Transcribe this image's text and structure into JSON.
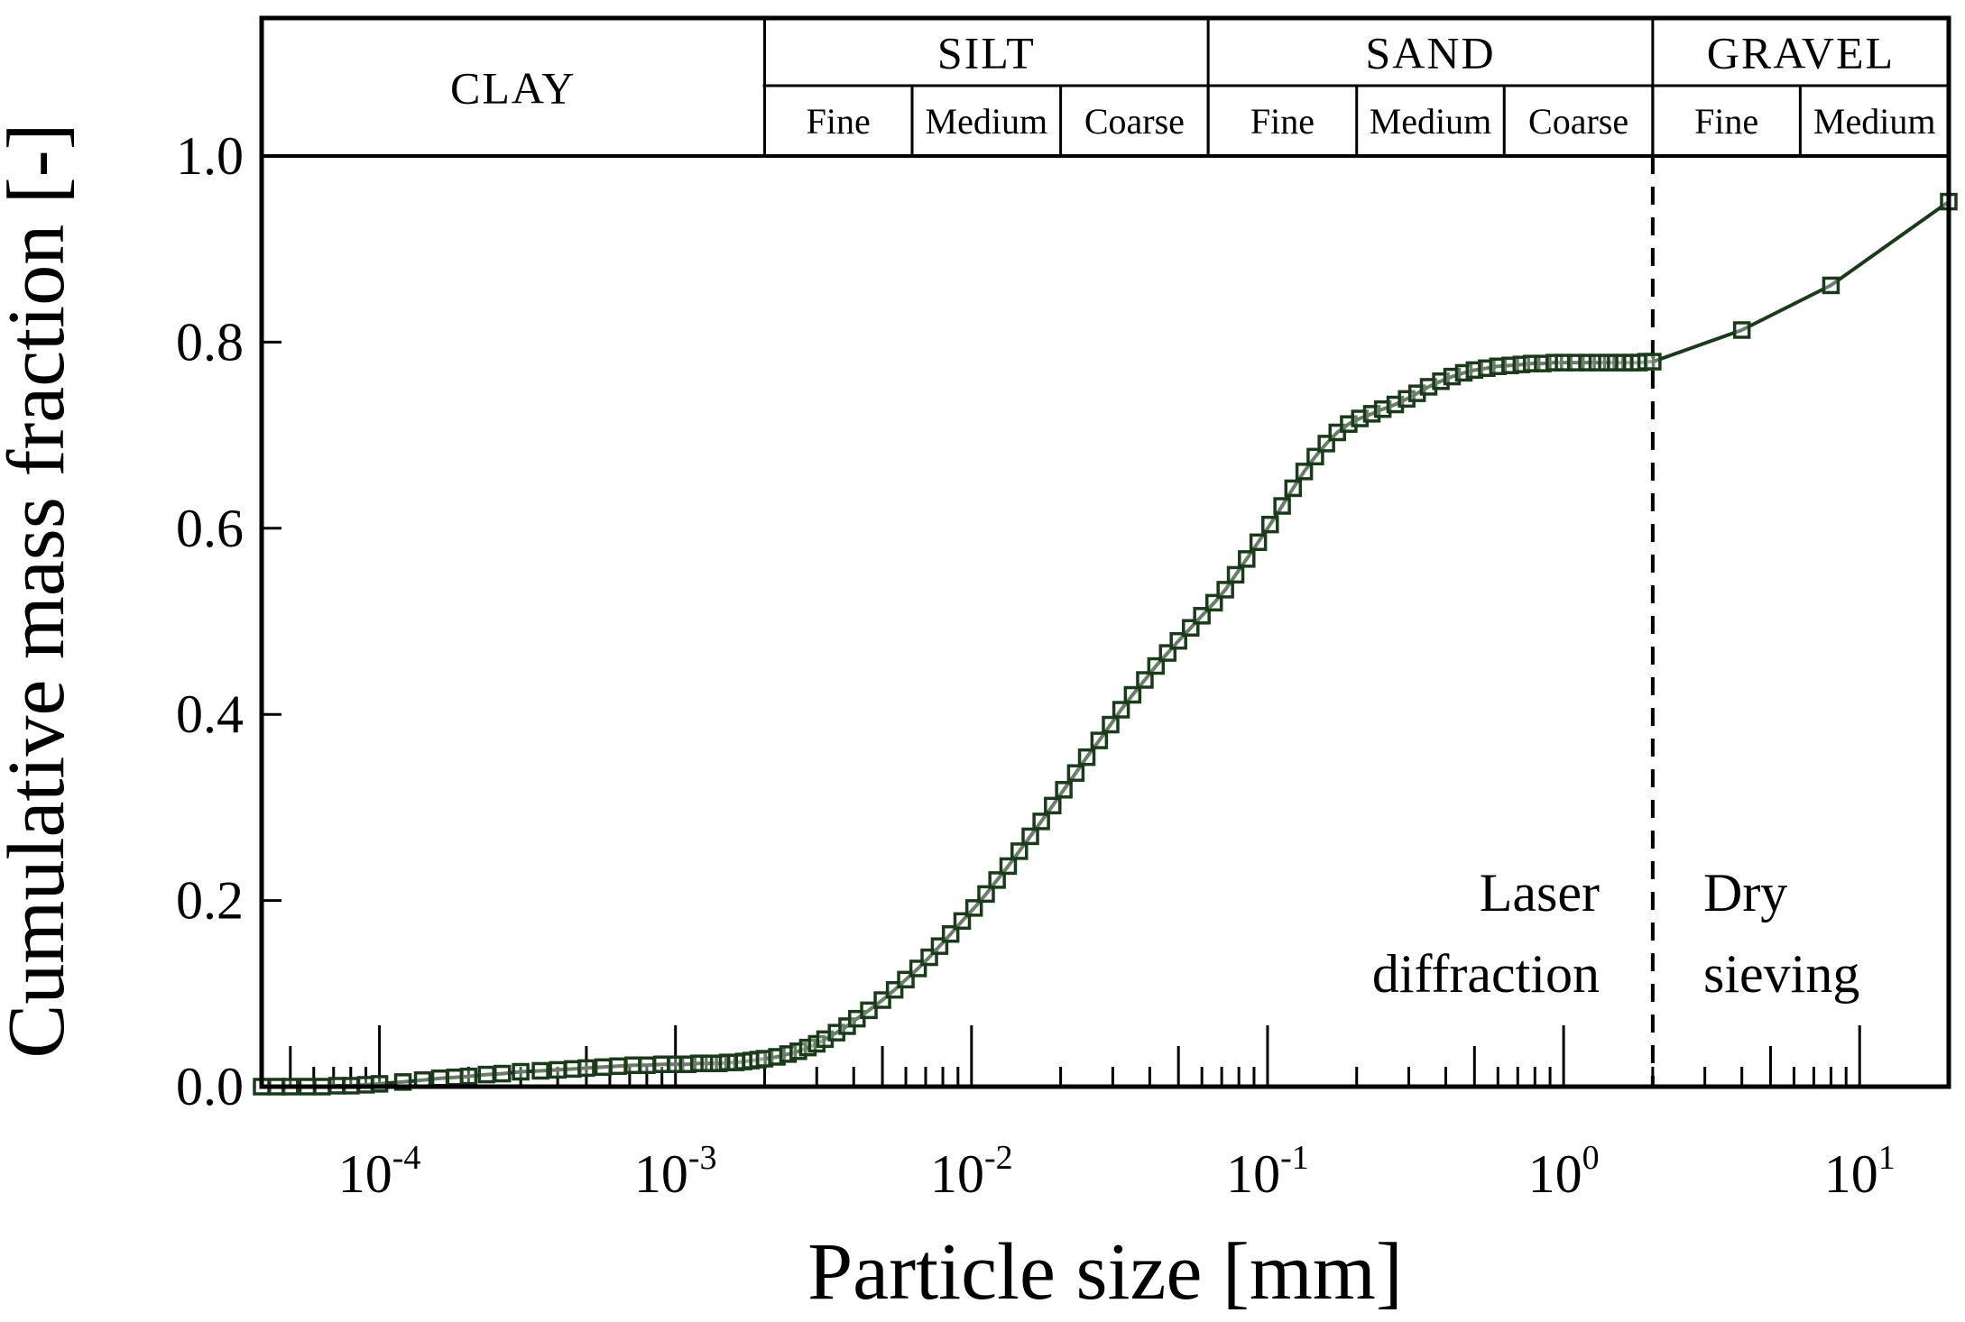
{
  "chart_data": {
    "type": "line",
    "title": "",
    "xlabel": "Particle size [mm]",
    "ylabel": "Cumulative mass fraction [-]",
    "xscale": "log",
    "xlim": [
      4e-05,
      20
    ],
    "ylim": [
      0,
      1.0
    ],
    "y_ticks": [
      "0.0",
      "0.2",
      "0.4",
      "0.6",
      "0.8",
      "1.0"
    ],
    "x_ticks": [
      {
        "base": "10",
        "exp": "-4",
        "value": 0.0001
      },
      {
        "base": "10",
        "exp": "-3",
        "value": 0.001
      },
      {
        "base": "10",
        "exp": "-2",
        "value": 0.01
      },
      {
        "base": "10",
        "exp": "-1",
        "value": 0.1
      },
      {
        "base": "10",
        "exp": "0",
        "value": 1
      },
      {
        "base": "10",
        "exp": "1",
        "value": 10
      }
    ],
    "series": [
      {
        "name": "Laser diffraction + Dry sieving",
        "color": "#1b3a1b",
        "marker": "open-square",
        "x": [
          4e-05,
          4.5e-05,
          5e-05,
          5.7e-05,
          6.4e-05,
          7.2e-05,
          8e-05,
          9e-05,
          0.0001,
          0.00012,
          0.00014,
          0.00016,
          0.00018,
          0.0002,
          0.00023,
          0.00026,
          0.0003,
          0.00035,
          0.0004,
          0.00045,
          0.0005,
          0.00057,
          0.00064,
          0.00072,
          0.0008,
          0.0009,
          0.001,
          0.0011,
          0.0012,
          0.0013,
          0.0014,
          0.0015,
          0.0016,
          0.0017,
          0.0018,
          0.0019,
          0.002,
          0.0022,
          0.0024,
          0.0026,
          0.0028,
          0.003,
          0.0032,
          0.0035,
          0.0038,
          0.0041,
          0.0045,
          0.005,
          0.0055,
          0.006,
          0.0066,
          0.0072,
          0.0078,
          0.0085,
          0.0093,
          0.0102,
          0.0112,
          0.0122,
          0.0133,
          0.0145,
          0.0158,
          0.0172,
          0.0188,
          0.0205,
          0.0225,
          0.0245,
          0.027,
          0.0295,
          0.032,
          0.035,
          0.0385,
          0.042,
          0.046,
          0.05,
          0.055,
          0.06,
          0.066,
          0.072,
          0.078,
          0.085,
          0.093,
          0.102,
          0.112,
          0.122,
          0.133,
          0.145,
          0.158,
          0.172,
          0.188,
          0.205,
          0.225,
          0.245,
          0.27,
          0.295,
          0.32,
          0.35,
          0.385,
          0.42,
          0.46,
          0.5,
          0.55,
          0.6,
          0.66,
          0.72,
          0.78,
          0.85,
          0.93,
          1.0,
          1.1,
          1.2,
          1.3,
          1.4,
          1.5,
          1.6,
          1.7,
          1.8,
          1.9,
          2.0,
          4.0,
          8.0,
          20.0
        ],
        "y": [
          0.0,
          0.0,
          0.0,
          0.0,
          0.0,
          0.001,
          0.001,
          0.002,
          0.003,
          0.005,
          0.007,
          0.009,
          0.01,
          0.011,
          0.013,
          0.014,
          0.016,
          0.017,
          0.018,
          0.019,
          0.02,
          0.021,
          0.022,
          0.023,
          0.023,
          0.024,
          0.024,
          0.024,
          0.025,
          0.025,
          0.025,
          0.026,
          0.026,
          0.027,
          0.028,
          0.029,
          0.03,
          0.032,
          0.035,
          0.038,
          0.042,
          0.046,
          0.051,
          0.058,
          0.065,
          0.073,
          0.082,
          0.093,
          0.104,
          0.115,
          0.127,
          0.139,
          0.151,
          0.164,
          0.178,
          0.192,
          0.207,
          0.222,
          0.237,
          0.253,
          0.269,
          0.285,
          0.302,
          0.319,
          0.337,
          0.354,
          0.372,
          0.389,
          0.405,
          0.421,
          0.437,
          0.452,
          0.466,
          0.479,
          0.493,
          0.506,
          0.52,
          0.534,
          0.55,
          0.567,
          0.585,
          0.604,
          0.624,
          0.643,
          0.661,
          0.677,
          0.691,
          0.703,
          0.712,
          0.718,
          0.723,
          0.728,
          0.733,
          0.739,
          0.745,
          0.752,
          0.758,
          0.763,
          0.767,
          0.77,
          0.772,
          0.774,
          0.775,
          0.776,
          0.777,
          0.777,
          0.778,
          0.778,
          0.778,
          0.778,
          0.778,
          0.778,
          0.778,
          0.778,
          0.778,
          0.778,
          0.779,
          0.779,
          0.813,
          0.861,
          0.951
        ]
      }
    ],
    "divider": {
      "x": 2.0,
      "style": "dashed"
    },
    "annotations": {
      "left_line1": "Laser",
      "left_line2": "diffraction",
      "right_line1": "Dry",
      "right_line2": "sieving"
    },
    "classification": {
      "main": [
        {
          "label": "CLAY",
          "from": 4e-05,
          "to": 0.002
        },
        {
          "label": "SILT",
          "from": 0.002,
          "to": 0.063
        },
        {
          "label": "SAND",
          "from": 0.063,
          "to": 2.0
        },
        {
          "label": "GRAVEL",
          "from": 2.0,
          "to": 20
        }
      ],
      "sub": [
        {
          "label": "Fine",
          "from": 0.002,
          "to": 0.0063
        },
        {
          "label": "Medium",
          "from": 0.0063,
          "to": 0.02
        },
        {
          "label": "Coarse",
          "from": 0.02,
          "to": 0.063
        },
        {
          "label": "Fine",
          "from": 0.063,
          "to": 0.2
        },
        {
          "label": "Medium",
          "from": 0.2,
          "to": 0.63
        },
        {
          "label": "Coarse",
          "from": 0.63,
          "to": 2.0
        },
        {
          "label": "Fine",
          "from": 2.0,
          "to": 6.3
        },
        {
          "label": "Medium",
          "from": 6.3,
          "to": 20
        }
      ]
    }
  }
}
